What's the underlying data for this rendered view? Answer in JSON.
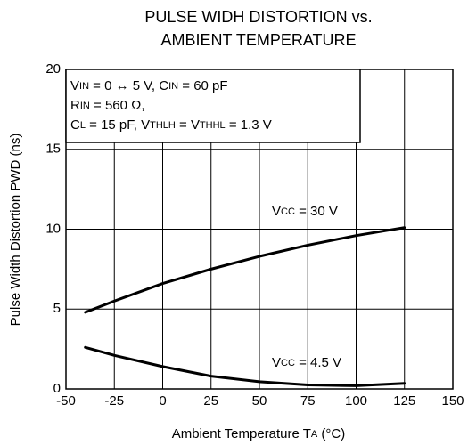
{
  "chart_data": {
    "type": "line",
    "title": [
      "PULSE WIDH DISTORTION vs.",
      "AMBIENT TEMPERATURE"
    ],
    "xlabel": [
      "Ambient Temperature T",
      "A",
      " (°C)"
    ],
    "ylabel": "Pulse Width Distortion PWD (ns)",
    "annotation": [
      [
        "V",
        "IN",
        " = 0 ↔ 5 V, C",
        "IN",
        " = 60 pF"
      ],
      [
        "R",
        "IN",
        " = 560 Ω,"
      ],
      [
        "C",
        "L",
        " = 15 pF, V",
        "THLH",
        " = V",
        "THHL",
        " = 1.3 V"
      ]
    ],
    "x": [
      -40,
      -25,
      0,
      25,
      50,
      75,
      100,
      125
    ],
    "series": [
      {
        "name": [
          "V",
          "CC",
          " = 30 V"
        ],
        "color": "#000000",
        "values": [
          4.8,
          5.5,
          6.6,
          7.5,
          8.3,
          9.0,
          9.6,
          10.1
        ]
      },
      {
        "name": [
          "V",
          "CC",
          " = 4.5 V"
        ],
        "color": "#000000",
        "values": [
          2.6,
          2.1,
          1.4,
          0.8,
          0.45,
          0.25,
          0.2,
          0.35
        ]
      }
    ],
    "xlim": [
      -50,
      150
    ],
    "xticks": [
      -50,
      -25,
      0,
      25,
      50,
      75,
      100,
      125,
      150
    ],
    "ylim": [
      0,
      20
    ],
    "yticks": [
      0,
      5,
      10,
      15,
      20
    ],
    "grid": true
  }
}
